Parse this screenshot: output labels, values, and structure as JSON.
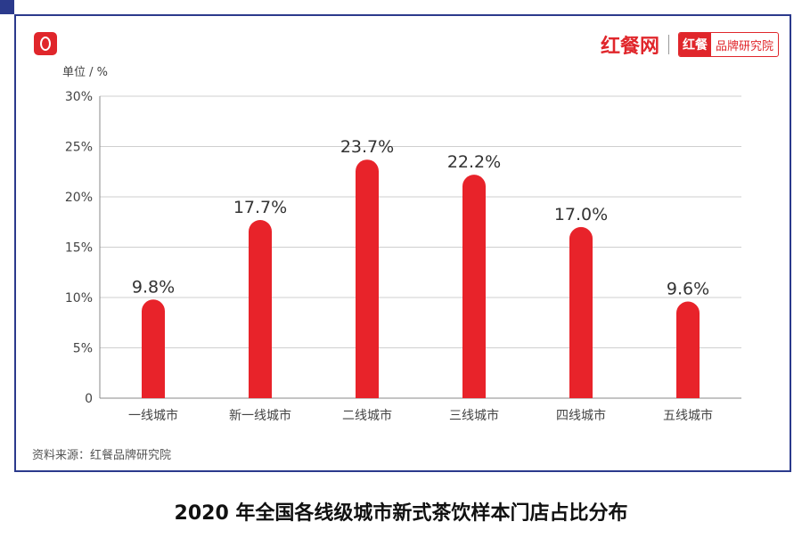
{
  "header": {
    "brand_site": "红餐网",
    "brand_box_a": "红餐",
    "brand_box_b": "品牌研究院"
  },
  "unit_label": "单位 / %",
  "source": "资料来源：红餐品牌研究院",
  "caption": "2020 年全国各线级城市新式茶饮样本门店占比分布",
  "colors": {
    "bar": "#e8232a",
    "frame": "#2b3a8c",
    "grid": "#cfcfcf"
  },
  "chart_data": {
    "type": "bar",
    "categories": [
      "一线城市",
      "新一线城市",
      "二线城市",
      "三线城市",
      "四线城市",
      "五线城市"
    ],
    "values": [
      9.8,
      17.7,
      23.7,
      22.2,
      17.0,
      9.6
    ],
    "data_labels": [
      "9.8%",
      "17.7%",
      "23.7%",
      "22.2%",
      "17.0%",
      "9.6%"
    ],
    "ylim": [
      0,
      30
    ],
    "yticks": [
      0,
      5,
      10,
      15,
      20,
      25,
      30
    ],
    "ytick_labels": [
      "0",
      "5%",
      "10%",
      "15%",
      "20%",
      "25%",
      "30%"
    ],
    "grid": true
  }
}
